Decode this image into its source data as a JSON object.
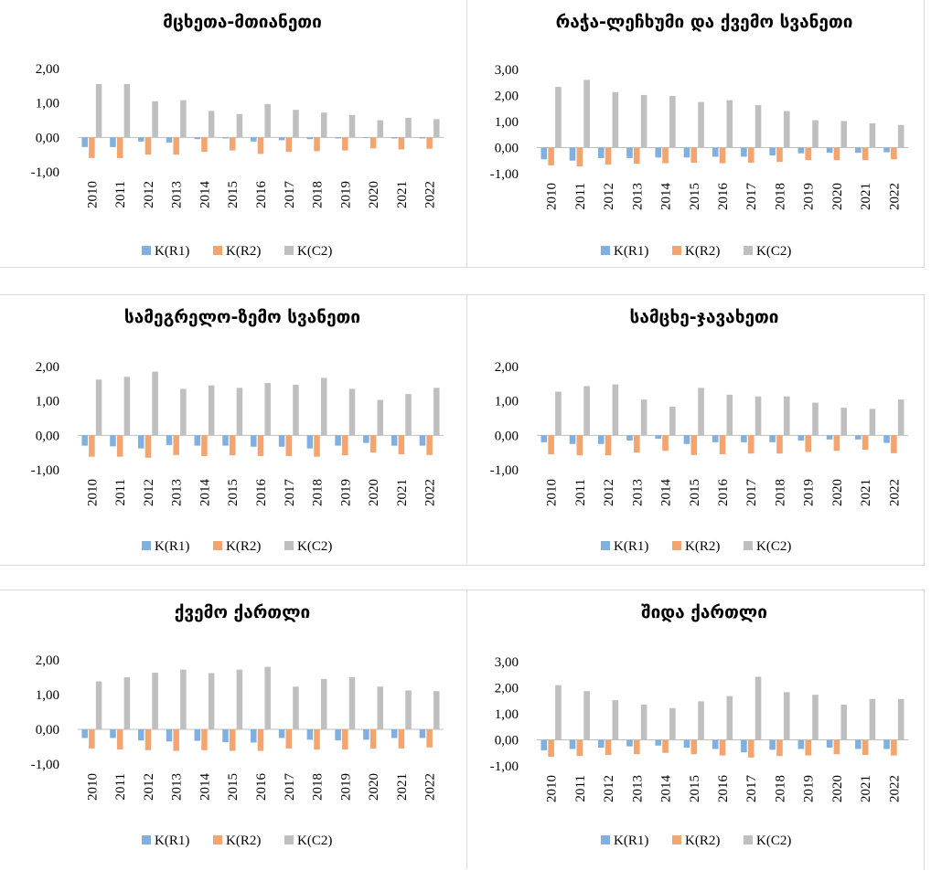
{
  "legend_labels": [
    "K(R1)",
    "K(R2)",
    "K(C2)"
  ],
  "colors": {
    "R1": "#7fb0df",
    "R2": "#f4a46f",
    "C2": "#bfbfbf",
    "axis": "#bfbfbf",
    "text": "#000000"
  },
  "chart_data": [
    {
      "type": "bar",
      "title": "მცხეთა-მთიანეთი",
      "categories": [
        "2010",
        "2011",
        "2012",
        "2013",
        "2014",
        "2015",
        "2016",
        "2017",
        "2018",
        "2019",
        "2020",
        "2021",
        "2022"
      ],
      "ylim": [
        -1,
        2
      ],
      "yticks": [
        "2,00",
        "1,00",
        "0,00",
        "-1,00"
      ],
      "legend_position": "bottom",
      "grid": false,
      "series": [
        {
          "name": "K(R1)",
          "values": [
            -0.28,
            -0.28,
            -0.12,
            -0.15,
            -0.05,
            -0.03,
            -0.12,
            -0.08,
            -0.05,
            -0.03,
            -0.02,
            -0.03,
            -0.03
          ]
        },
        {
          "name": "K(R2)",
          "values": [
            -0.6,
            -0.6,
            -0.5,
            -0.5,
            -0.42,
            -0.38,
            -0.48,
            -0.42,
            -0.4,
            -0.38,
            -0.32,
            -0.35,
            -0.33
          ]
        },
        {
          "name": "K(C2)",
          "values": [
            1.55,
            1.55,
            1.05,
            1.08,
            0.77,
            0.68,
            0.97,
            0.8,
            0.72,
            0.65,
            0.5,
            0.57,
            0.53
          ]
        }
      ]
    },
    {
      "type": "bar",
      "title": "რაჭა-ლეჩხუმი და ქვემო სვანეთი",
      "categories": [
        "2010",
        "2011",
        "2012",
        "2013",
        "2014",
        "2015",
        "2016",
        "2017",
        "2018",
        "2019",
        "2020",
        "2021",
        "2022"
      ],
      "ylim": [
        -1,
        3
      ],
      "yticks": [
        "3,00",
        "2,00",
        "1,00",
        "0,00",
        "-1,00"
      ],
      "legend_position": "bottom",
      "grid": false,
      "series": [
        {
          "name": "K(R1)",
          "values": [
            -0.45,
            -0.5,
            -0.4,
            -0.4,
            -0.38,
            -0.38,
            -0.35,
            -0.35,
            -0.3,
            -0.22,
            -0.2,
            -0.2,
            -0.18
          ]
        },
        {
          "name": "K(R2)",
          "values": [
            -0.68,
            -0.72,
            -0.65,
            -0.62,
            -0.6,
            -0.58,
            -0.6,
            -0.58,
            -0.55,
            -0.48,
            -0.48,
            -0.48,
            -0.45
          ]
        },
        {
          "name": "K(C2)",
          "values": [
            2.33,
            2.6,
            2.13,
            2.02,
            1.98,
            1.75,
            1.82,
            1.63,
            1.4,
            1.05,
            1.02,
            0.93,
            0.87
          ]
        }
      ]
    },
    {
      "type": "bar",
      "title": "სამეგრელო-ზემო სვანეთი",
      "categories": [
        "2010",
        "2011",
        "2012",
        "2013",
        "2014",
        "2015",
        "2016",
        "2017",
        "2018",
        "2019",
        "2020",
        "2021",
        "2022"
      ],
      "ylim": [
        -1,
        2
      ],
      "yticks": [
        "2,00",
        "1,00",
        "0,00",
        "-1,00"
      ],
      "legend_position": "bottom",
      "grid": false,
      "series": [
        {
          "name": "K(R1)",
          "values": [
            -0.3,
            -0.32,
            -0.38,
            -0.28,
            -0.3,
            -0.3,
            -0.33,
            -0.33,
            -0.38,
            -0.3,
            -0.22,
            -0.3,
            -0.3
          ]
        },
        {
          "name": "K(R2)",
          "values": [
            -0.62,
            -0.62,
            -0.65,
            -0.57,
            -0.6,
            -0.58,
            -0.6,
            -0.6,
            -0.62,
            -0.58,
            -0.5,
            -0.55,
            -0.57
          ]
        },
        {
          "name": "K(C2)",
          "values": [
            1.62,
            1.7,
            1.85,
            1.35,
            1.45,
            1.38,
            1.52,
            1.47,
            1.67,
            1.35,
            1.03,
            1.2,
            1.38
          ]
        }
      ]
    },
    {
      "type": "bar",
      "title": "სამცხე-ჯავახეთი",
      "categories": [
        "2010",
        "2011",
        "2012",
        "2013",
        "2014",
        "2015",
        "2016",
        "2017",
        "2018",
        "2019",
        "2020",
        "2021",
        "2022"
      ],
      "ylim": [
        -1,
        2
      ],
      "yticks": [
        "2,00",
        "1,00",
        "0,00",
        "-1,00"
      ],
      "legend_position": "bottom",
      "grid": false,
      "series": [
        {
          "name": "K(R1)",
          "values": [
            -0.2,
            -0.25,
            -0.25,
            -0.15,
            -0.1,
            -0.25,
            -0.2,
            -0.2,
            -0.2,
            -0.15,
            -0.12,
            -0.12,
            -0.22
          ]
        },
        {
          "name": "K(R2)",
          "values": [
            -0.55,
            -0.58,
            -0.58,
            -0.5,
            -0.45,
            -0.57,
            -0.55,
            -0.53,
            -0.53,
            -0.48,
            -0.45,
            -0.42,
            -0.52
          ]
        },
        {
          "name": "K(C2)",
          "values": [
            1.27,
            1.43,
            1.48,
            1.04,
            0.83,
            1.38,
            1.18,
            1.13,
            1.13,
            0.95,
            0.8,
            0.77,
            1.04
          ]
        }
      ]
    },
    {
      "type": "bar",
      "title": "ქვემო ქართლი",
      "categories": [
        "2010",
        "2011",
        "2012",
        "2013",
        "2014",
        "2015",
        "2016",
        "2017",
        "2018",
        "2019",
        "2020",
        "2021",
        "2022"
      ],
      "ylim": [
        -1,
        2
      ],
      "yticks": [
        "2,00",
        "1,00",
        "0,00",
        "-1,00"
      ],
      "legend_position": "bottom",
      "grid": false,
      "series": [
        {
          "name": "K(R1)",
          "values": [
            -0.25,
            -0.25,
            -0.32,
            -0.35,
            -0.33,
            -0.37,
            -0.38,
            -0.25,
            -0.3,
            -0.32,
            -0.3,
            -0.25,
            -0.25
          ]
        },
        {
          "name": "K(R2)",
          "values": [
            -0.55,
            -0.58,
            -0.6,
            -0.62,
            -0.6,
            -0.62,
            -0.62,
            -0.55,
            -0.58,
            -0.58,
            -0.55,
            -0.55,
            -0.52
          ]
        },
        {
          "name": "K(C2)",
          "values": [
            1.38,
            1.5,
            1.63,
            1.72,
            1.62,
            1.72,
            1.8,
            1.23,
            1.45,
            1.5,
            1.23,
            1.12,
            1.1
          ]
        }
      ]
    },
    {
      "type": "bar",
      "title": "შიდა ქართლი",
      "categories": [
        "2010",
        "2011",
        "2012",
        "2013",
        "2014",
        "2015",
        "2016",
        "2017",
        "2018",
        "2019",
        "2020",
        "2021",
        "2022"
      ],
      "ylim": [
        -1,
        3
      ],
      "yticks": [
        "3,00",
        "2,00",
        "1,00",
        "0,00",
        "-1,00"
      ],
      "legend_position": "bottom",
      "grid": false,
      "series": [
        {
          "name": "K(R1)",
          "values": [
            -0.4,
            -0.35,
            -0.3,
            -0.25,
            -0.22,
            -0.3,
            -0.35,
            -0.48,
            -0.38,
            -0.35,
            -0.3,
            -0.35,
            -0.35
          ]
        },
        {
          "name": "K(R2)",
          "values": [
            -0.65,
            -0.62,
            -0.58,
            -0.55,
            -0.5,
            -0.55,
            -0.6,
            -0.68,
            -0.62,
            -0.6,
            -0.55,
            -0.58,
            -0.6
          ]
        },
        {
          "name": "K(C2)",
          "values": [
            2.1,
            1.87,
            1.52,
            1.35,
            1.22,
            1.48,
            1.68,
            2.42,
            1.83,
            1.73,
            1.35,
            1.57,
            1.57
          ]
        }
      ]
    }
  ]
}
